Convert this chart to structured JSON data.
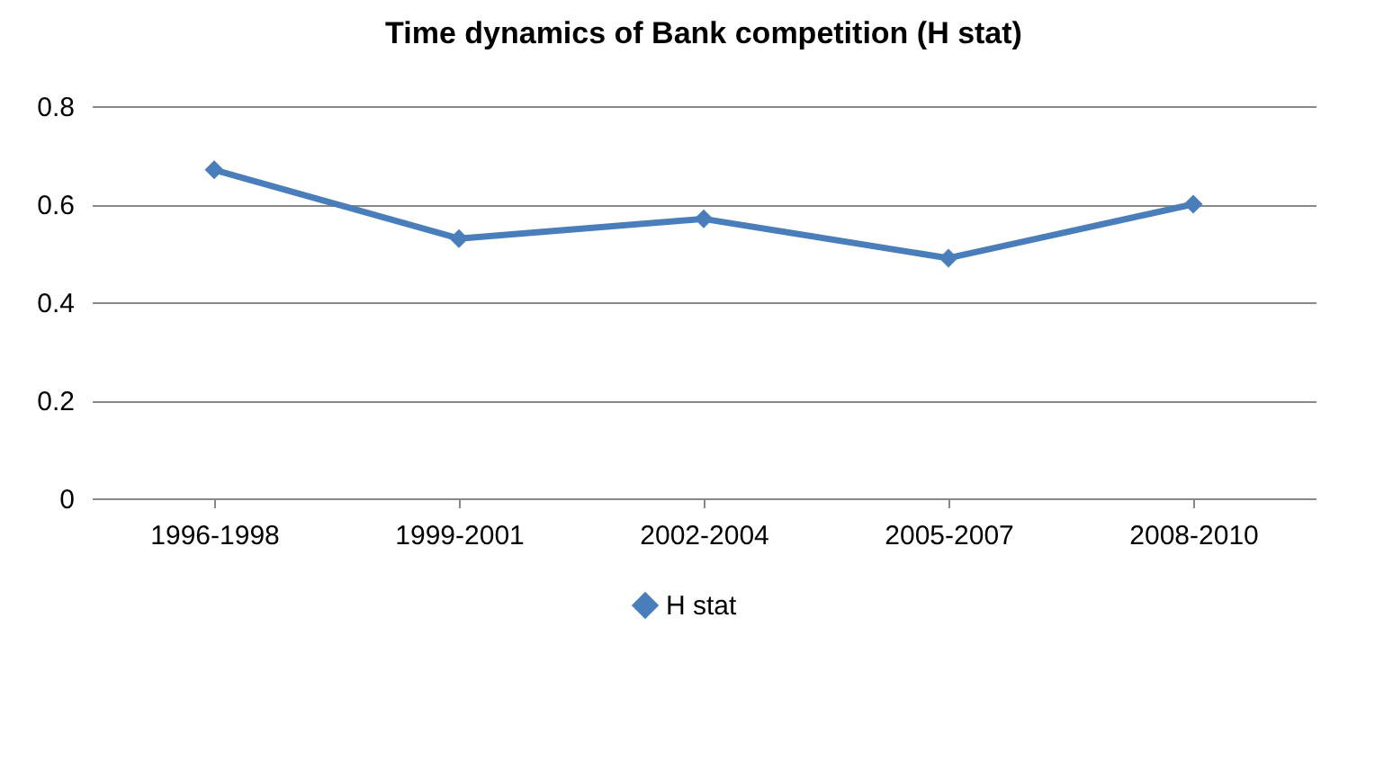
{
  "chart_data": {
    "type": "line",
    "title": "Time dynamics of Bank competition (H stat)",
    "categories": [
      "1996-1998",
      "1999-2001",
      "2002-2004",
      "2005-2007",
      "2008-2010"
    ],
    "series": [
      {
        "name": "H stat",
        "color": "#4a7ebb",
        "values": [
          0.67,
          0.53,
          0.57,
          0.49,
          0.6
        ]
      }
    ],
    "ylim": [
      0,
      0.8
    ],
    "yticks": [
      {
        "value": 0,
        "label": "0"
      },
      0.2,
      0.4,
      0.6,
      0.8
    ],
    "grid": "y",
    "legend": "bottom",
    "marker": "diamond",
    "line_style": "solid"
  }
}
